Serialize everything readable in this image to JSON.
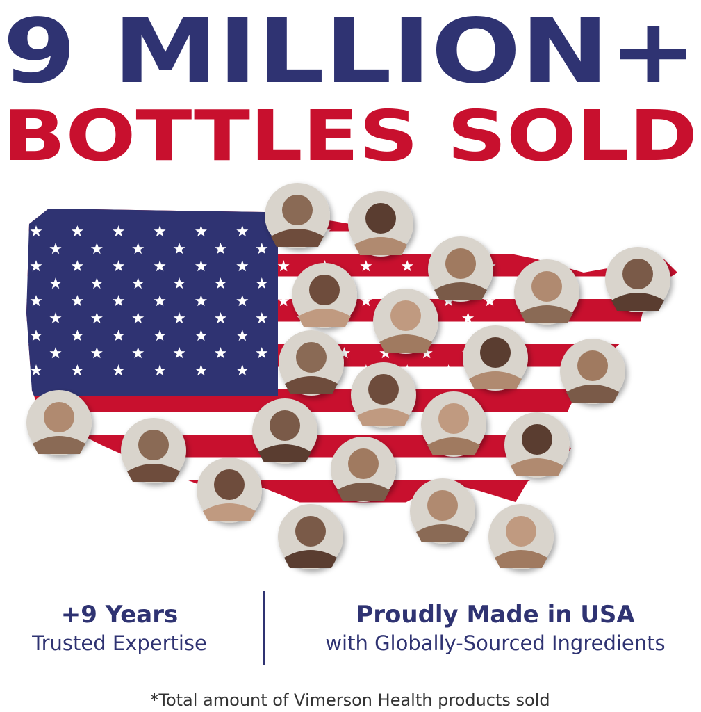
{
  "headline": {
    "line1": "9 MILLION+",
    "line2": "BOTTLES SOLD"
  },
  "features": [
    {
      "title": "+9 Years",
      "subtitle": "Trusted Expertise"
    },
    {
      "title": "Proudly Made in USA",
      "subtitle": "with Globally-Sourced Ingredients"
    }
  ],
  "footnote": "*Total amount of Vimerson Health products sold"
}
